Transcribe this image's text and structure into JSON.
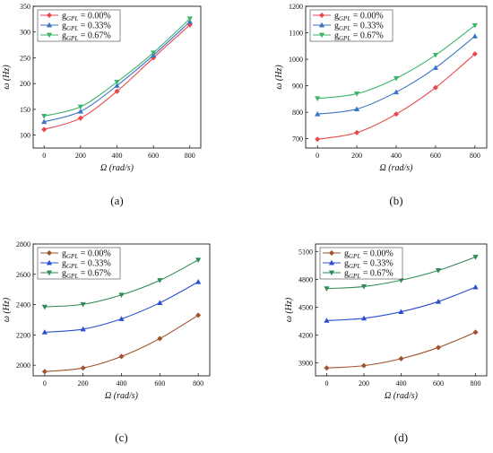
{
  "chart_data": [
    {
      "type": "line",
      "panel_label": "(a)",
      "xlabel": "Ω (rad/s)",
      "ylabel": "ω (Hz)",
      "x": [
        0,
        200,
        400,
        600,
        800
      ],
      "xticks": [
        0,
        200,
        400,
        600,
        800
      ],
      "xlim": [
        -60,
        860
      ],
      "ylim": [
        75,
        350
      ],
      "yticks": [
        100,
        150,
        200,
        250,
        300,
        350
      ],
      "legend_position": "top-left",
      "grid": false,
      "series": [
        {
          "name": "g_GPL = 0.00%",
          "color": "#e8474b",
          "marker": "diamond",
          "values": [
            111,
            133,
            185,
            250,
            314
          ]
        },
        {
          "name": "g_GPL = 0.33%",
          "color": "#3a74c4",
          "marker": "triangle-up",
          "values": [
            126,
            146,
            196,
            255,
            320
          ]
        },
        {
          "name": "g_GPL = 0.67%",
          "color": "#3db46b",
          "marker": "triangle-down",
          "values": [
            137,
            155,
            203,
            260,
            326
          ]
        }
      ]
    },
    {
      "type": "line",
      "panel_label": "(b)",
      "xlabel": "Ω (rad/s)",
      "ylabel": "ω (Hz)",
      "x": [
        0,
        200,
        400,
        600,
        800
      ],
      "xticks": [
        0,
        200,
        400,
        600,
        800
      ],
      "xlim": [
        -60,
        860
      ],
      "ylim": [
        665,
        1200
      ],
      "yticks": [
        700,
        800,
        900,
        1000,
        1100,
        1200
      ],
      "legend_position": "top-left",
      "grid": false,
      "series": [
        {
          "name": "g_GPL = 0.00%",
          "color": "#e8474b",
          "marker": "diamond",
          "values": [
            698,
            723,
            793,
            893,
            1020
          ]
        },
        {
          "name": "g_GPL = 0.33%",
          "color": "#3a74c4",
          "marker": "triangle-up",
          "values": [
            793,
            812,
            876,
            968,
            1087
          ]
        },
        {
          "name": "g_GPL = 0.67%",
          "color": "#3db46b",
          "marker": "triangle-down",
          "values": [
            852,
            870,
            928,
            1016,
            1128
          ]
        }
      ]
    },
    {
      "type": "line",
      "panel_label": "(c)",
      "xlabel": "Ω (rad/s)",
      "ylabel": "ω (Hz)",
      "x": [
        0,
        200,
        400,
        600,
        800
      ],
      "xticks": [
        0,
        200,
        400,
        600,
        800
      ],
      "xlim": [
        -60,
        860
      ],
      "ylim": [
        1930,
        2800
      ],
      "yticks": [
        2000,
        2200,
        2400,
        2600,
        2800
      ],
      "legend_position": "top-left",
      "grid": false,
      "series": [
        {
          "name": "g_GPL = 0.00%",
          "color": "#a0522d",
          "marker": "diamond",
          "values": [
            1958,
            1982,
            2058,
            2176,
            2330
          ]
        },
        {
          "name": "g_GPL = 0.33%",
          "color": "#2c4fd1",
          "marker": "triangle-up",
          "values": [
            2218,
            2238,
            2306,
            2412,
            2550
          ]
        },
        {
          "name": "g_GPL = 0.67%",
          "color": "#2e8b57",
          "marker": "triangle-down",
          "values": [
            2385,
            2402,
            2464,
            2560,
            2695
          ]
        }
      ]
    },
    {
      "type": "line",
      "panel_label": "(d)",
      "xlabel": "Ω (rad/s)",
      "ylabel": "ω (Hz)",
      "x": [
        0,
        200,
        400,
        600,
        800
      ],
      "xticks": [
        0,
        200,
        400,
        600,
        800
      ],
      "xlim": [
        -60,
        860
      ],
      "ylim": [
        3760,
        5180
      ],
      "yticks": [
        3900,
        4200,
        4500,
        4800,
        5100
      ],
      "legend_position": "top-left",
      "grid": false,
      "series": [
        {
          "name": "g_GPL = 0.00%",
          "color": "#a0522d",
          "marker": "diamond",
          "values": [
            3845,
            3870,
            3945,
            4065,
            4230
          ]
        },
        {
          "name": "g_GPL = 0.33%",
          "color": "#2c4fd1",
          "marker": "triangle-up",
          "values": [
            4355,
            4380,
            4450,
            4560,
            4715
          ]
        },
        {
          "name": "g_GPL = 0.67%",
          "color": "#2e8b57",
          "marker": "triangle-down",
          "values": [
            4700,
            4722,
            4790,
            4895,
            5040
          ]
        }
      ]
    }
  ]
}
